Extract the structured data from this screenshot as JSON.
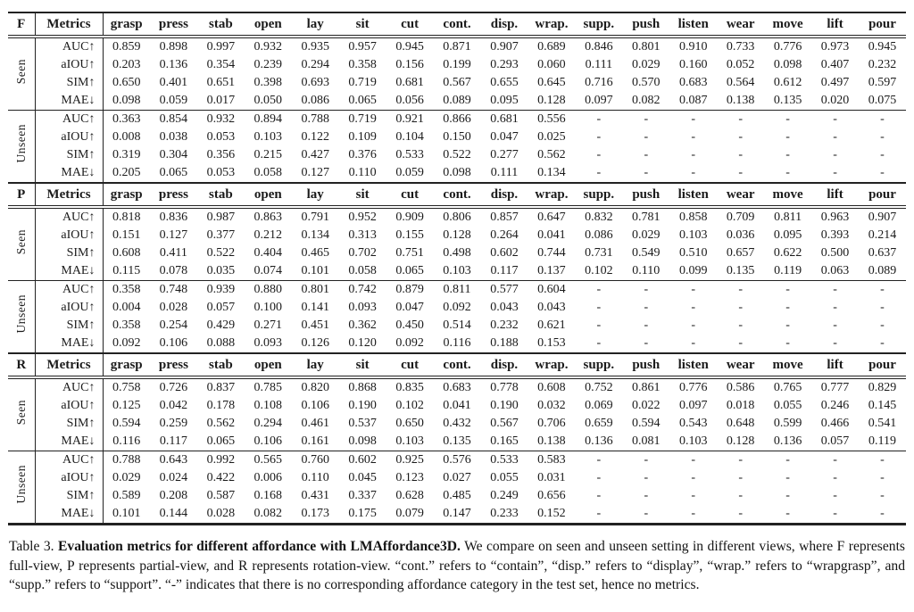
{
  "table": {
    "metrics_header": "Metrics",
    "metric_labels": [
      "AUC↑",
      "aIOU↑",
      "SIM↑",
      "MAE↓"
    ],
    "columns": [
      "grasp",
      "press",
      "stab",
      "open",
      "lay",
      "sit",
      "cut",
      "cont.",
      "disp.",
      "wrap.",
      "supp.",
      "push",
      "listen",
      "wear",
      "move",
      "lift",
      "pour"
    ],
    "missing_marker": "-",
    "sections": [
      {
        "view": "F",
        "blocks": [
          {
            "label": "Seen",
            "rows": [
              [
                "0.859",
                "0.898",
                "0.997",
                "0.932",
                "0.935",
                "0.957",
                "0.945",
                "0.871",
                "0.907",
                "0.689",
                "0.846",
                "0.801",
                "0.910",
                "0.733",
                "0.776",
                "0.973",
                "0.945"
              ],
              [
                "0.203",
                "0.136",
                "0.354",
                "0.239",
                "0.294",
                "0.358",
                "0.156",
                "0.199",
                "0.293",
                "0.060",
                "0.111",
                "0.029",
                "0.160",
                "0.052",
                "0.098",
                "0.407",
                "0.232"
              ],
              [
                "0.650",
                "0.401",
                "0.651",
                "0.398",
                "0.693",
                "0.719",
                "0.681",
                "0.567",
                "0.655",
                "0.645",
                "0.716",
                "0.570",
                "0.683",
                "0.564",
                "0.612",
                "0.497",
                "0.597"
              ],
              [
                "0.098",
                "0.059",
                "0.017",
                "0.050",
                "0.086",
                "0.065",
                "0.056",
                "0.089",
                "0.095",
                "0.128",
                "0.097",
                "0.082",
                "0.087",
                "0.138",
                "0.135",
                "0.020",
                "0.075"
              ]
            ]
          },
          {
            "label": "Unseen",
            "rows": [
              [
                "0.363",
                "0.854",
                "0.932",
                "0.894",
                "0.788",
                "0.719",
                "0.921",
                "0.866",
                "0.681",
                "0.556",
                "-",
                "-",
                "-",
                "-",
                "-",
                "-",
                "-"
              ],
              [
                "0.008",
                "0.038",
                "0.053",
                "0.103",
                "0.122",
                "0.109",
                "0.104",
                "0.150",
                "0.047",
                "0.025",
                "-",
                "-",
                "-",
                "-",
                "-",
                "-",
                "-"
              ],
              [
                "0.319",
                "0.304",
                "0.356",
                "0.215",
                "0.427",
                "0.376",
                "0.533",
                "0.522",
                "0.277",
                "0.562",
                "-",
                "-",
                "-",
                "-",
                "-",
                "-",
                "-"
              ],
              [
                "0.205",
                "0.065",
                "0.053",
                "0.058",
                "0.127",
                "0.110",
                "0.059",
                "0.098",
                "0.111",
                "0.134",
                "-",
                "-",
                "-",
                "-",
                "-",
                "-",
                "-"
              ]
            ]
          }
        ]
      },
      {
        "view": "P",
        "blocks": [
          {
            "label": "Seen",
            "rows": [
              [
                "0.818",
                "0.836",
                "0.987",
                "0.863",
                "0.791",
                "0.952",
                "0.909",
                "0.806",
                "0.857",
                "0.647",
                "0.832",
                "0.781",
                "0.858",
                "0.709",
                "0.811",
                "0.963",
                "0.907"
              ],
              [
                "0.151",
                "0.127",
                "0.377",
                "0.212",
                "0.134",
                "0.313",
                "0.155",
                "0.128",
                "0.264",
                "0.041",
                "0.086",
                "0.029",
                "0.103",
                "0.036",
                "0.095",
                "0.393",
                "0.214"
              ],
              [
                "0.608",
                "0.411",
                "0.522",
                "0.404",
                "0.465",
                "0.702",
                "0.751",
                "0.498",
                "0.602",
                "0.744",
                "0.731",
                "0.549",
                "0.510",
                "0.657",
                "0.622",
                "0.500",
                "0.637"
              ],
              [
                "0.115",
                "0.078",
                "0.035",
                "0.074",
                "0.101",
                "0.058",
                "0.065",
                "0.103",
                "0.117",
                "0.137",
                "0.102",
                "0.110",
                "0.099",
                "0.135",
                "0.119",
                "0.063",
                "0.089"
              ]
            ]
          },
          {
            "label": "Unseen",
            "rows": [
              [
                "0.358",
                "0.748",
                "0.939",
                "0.880",
                "0.801",
                "0.742",
                "0.879",
                "0.811",
                "0.577",
                "0.604",
                "-",
                "-",
                "-",
                "-",
                "-",
                "-",
                "-"
              ],
              [
                "0.004",
                "0.028",
                "0.057",
                "0.100",
                "0.141",
                "0.093",
                "0.047",
                "0.092",
                "0.043",
                "0.043",
                "-",
                "-",
                "-",
                "-",
                "-",
                "-",
                "-"
              ],
              [
                "0.358",
                "0.254",
                "0.429",
                "0.271",
                "0.451",
                "0.362",
                "0.450",
                "0.514",
                "0.232",
                "0.621",
                "-",
                "-",
                "-",
                "-",
                "-",
                "-",
                "-"
              ],
              [
                "0.092",
                "0.106",
                "0.088",
                "0.093",
                "0.126",
                "0.120",
                "0.092",
                "0.116",
                "0.188",
                "0.153",
                "-",
                "-",
                "-",
                "-",
                "-",
                "-",
                "-"
              ]
            ]
          }
        ]
      },
      {
        "view": "R",
        "blocks": [
          {
            "label": "Seen",
            "rows": [
              [
                "0.758",
                "0.726",
                "0.837",
                "0.785",
                "0.820",
                "0.868",
                "0.835",
                "0.683",
                "0.778",
                "0.608",
                "0.752",
                "0.861",
                "0.776",
                "0.586",
                "0.765",
                "0.777",
                "0.829"
              ],
              [
                "0.125",
                "0.042",
                "0.178",
                "0.108",
                "0.106",
                "0.190",
                "0.102",
                "0.041",
                "0.190",
                "0.032",
                "0.069",
                "0.022",
                "0.097",
                "0.018",
                "0.055",
                "0.246",
                "0.145"
              ],
              [
                "0.594",
                "0.259",
                "0.562",
                "0.294",
                "0.461",
                "0.537",
                "0.650",
                "0.432",
                "0.567",
                "0.706",
                "0.659",
                "0.594",
                "0.543",
                "0.648",
                "0.599",
                "0.466",
                "0.541"
              ],
              [
                "0.116",
                "0.117",
                "0.065",
                "0.106",
                "0.161",
                "0.098",
                "0.103",
                "0.135",
                "0.165",
                "0.138",
                "0.136",
                "0.081",
                "0.103",
                "0.128",
                "0.136",
                "0.057",
                "0.119"
              ]
            ]
          },
          {
            "label": "Unseen",
            "rows": [
              [
                "0.788",
                "0.643",
                "0.992",
                "0.565",
                "0.760",
                "0.602",
                "0.925",
                "0.576",
                "0.533",
                "0.583",
                "-",
                "-",
                "-",
                "-",
                "-",
                "-",
                "-"
              ],
              [
                "0.029",
                "0.024",
                "0.422",
                "0.006",
                "0.110",
                "0.045",
                "0.123",
                "0.027",
                "0.055",
                "0.031",
                "-",
                "-",
                "-",
                "-",
                "-",
                "-",
                "-"
              ],
              [
                "0.589",
                "0.208",
                "0.587",
                "0.168",
                "0.431",
                "0.337",
                "0.628",
                "0.485",
                "0.249",
                "0.656",
                "-",
                "-",
                "-",
                "-",
                "-",
                "-",
                "-"
              ],
              [
                "0.101",
                "0.144",
                "0.028",
                "0.082",
                "0.173",
                "0.175",
                "0.079",
                "0.147",
                "0.233",
                "0.152",
                "-",
                "-",
                "-",
                "-",
                "-",
                "-",
                "-"
              ]
            ]
          }
        ]
      }
    ]
  },
  "caption": {
    "label": "Table 3.",
    "title": "Evaluation metrics for different affordance with LMAffordance3D.",
    "rest": "We compare on seen and unseen setting in different views, where F represents full-view, P represents partial-view, and R represents rotation-view. “cont.” refers to “contain”, “disp.” refers to “display”, “wrap.” refers to “wrapgrasp”, and “supp.” refers to “support”. “-” indicates that there is no corresponding affordance category in the test set, hence no metrics."
  }
}
